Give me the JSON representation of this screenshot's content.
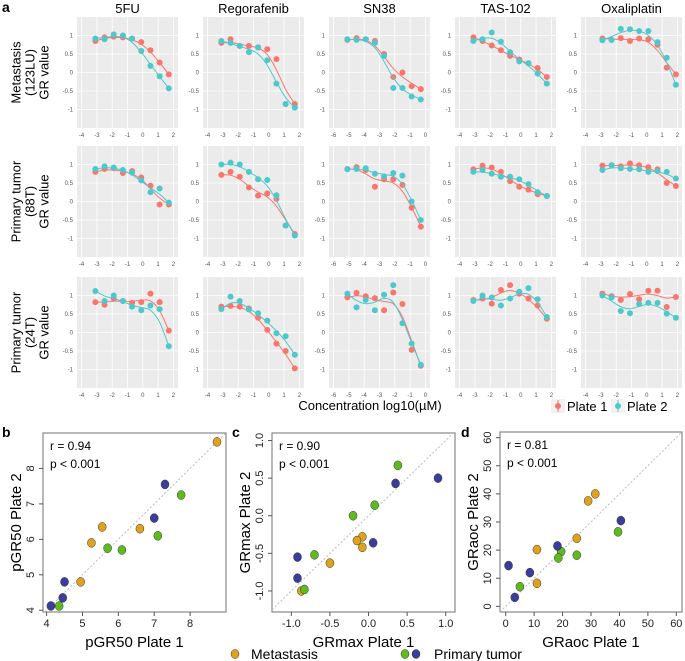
{
  "panel_labels": {
    "a": "a",
    "b": "b",
    "c": "c",
    "d": "d"
  },
  "colors": {
    "plate1": "#F8766D",
    "plate2": "#4DC9CC",
    "metastasis": "#DFA21C",
    "primary_green": "#5DBB1E",
    "primary_blue": "#3A3D9C",
    "panel_bg": "#EBEBEB"
  },
  "chart_data": [
    {
      "type": "line",
      "panel": "a",
      "columns": [
        "5FU",
        "Regorafenib",
        "SN38",
        "TAS-102",
        "Oxaliplatin"
      ],
      "rows": [
        {
          "label": [
            "Metastasis",
            "(123LU)",
            "GR value"
          ]
        },
        {
          "label": [
            "Primary tumor",
            "(88T)",
            "GR value"
          ]
        },
        {
          "label": [
            "Primary tumor",
            "(24T)",
            "GR value"
          ]
        }
      ],
      "xlabel": "Concentration log10(µM)",
      "ylim": [
        -1.5,
        1.5
      ],
      "yticks": [
        "-1",
        "-0.5",
        "0",
        "0.5",
        "1"
      ],
      "xticks_by_column": [
        [
          "-4",
          "-3",
          "-2",
          "-1",
          "0",
          "1",
          "2"
        ],
        [
          "-4",
          "-3",
          "-2",
          "-1",
          "0",
          "1",
          "2"
        ],
        [
          "-6",
          "-5",
          "-4",
          "-3",
          "-2",
          "-1",
          "0"
        ],
        [
          "-4",
          "-3",
          "-2",
          "-1",
          "0",
          "1",
          "2"
        ],
        [
          "-4",
          "-3",
          "-2",
          "-1",
          "0",
          "1",
          "2"
        ]
      ],
      "xlim_by_column": [
        [
          -4.3,
          2.3
        ],
        [
          -4.3,
          2.3
        ],
        [
          -6.3,
          0.3
        ],
        [
          -4.3,
          2.3
        ],
        [
          -4.3,
          2.3
        ]
      ],
      "x_by_column": [
        [
          -3.1,
          -2.5,
          -1.9,
          -1.3,
          -0.7,
          -0.1,
          0.5,
          1.1,
          1.7
        ],
        [
          -3.1,
          -2.5,
          -1.9,
          -1.3,
          -0.7,
          -0.1,
          0.5,
          1.1,
          1.7
        ],
        [
          -5.1,
          -4.5,
          -3.9,
          -3.3,
          -2.7,
          -2.1,
          -1.5,
          -0.9,
          -0.3
        ],
        [
          -3.1,
          -2.5,
          -1.9,
          -1.3,
          -0.7,
          -0.1,
          0.5,
          1.1,
          1.7
        ],
        [
          -2.9,
          -2.3,
          -1.7,
          -1.1,
          -0.5,
          0.1,
          0.7,
          1.3,
          1.9
        ]
      ],
      "legend": [
        "Plate 1",
        "Plate 2"
      ],
      "legend_position": "bottom-right",
      "series": [
        [
          {
            "p1": [
              0.85,
              0.95,
              0.97,
              0.95,
              0.92,
              0.82,
              0.6,
              0.27,
              -0.05
            ],
            "p2": [
              0.92,
              0.9,
              1.03,
              1.0,
              0.92,
              0.58,
              0.18,
              -0.1,
              -0.43
            ]
          },
          {
            "p1": [
              0.8,
              0.9,
              0.72,
              0.72,
              0.68,
              0.63,
              0.36,
              -0.85,
              -0.85
            ],
            "p2": [
              0.85,
              0.8,
              0.72,
              0.55,
              0.68,
              0.33,
              -0.3,
              -0.85,
              -0.95
            ]
          },
          {
            "p1": [
              0.88,
              0.93,
              0.9,
              0.85,
              0.5,
              -0.12,
              0.0,
              -0.37,
              -0.45
            ],
            "p2": [
              0.9,
              0.88,
              0.9,
              0.8,
              0.45,
              -0.42,
              -0.42,
              -0.65,
              -0.73
            ]
          },
          {
            "p1": [
              0.95,
              0.85,
              0.73,
              0.6,
              0.45,
              0.35,
              0.25,
              0.12,
              -0.12
            ],
            "p2": [
              0.85,
              0.9,
              1.08,
              0.83,
              0.55,
              0.3,
              0.25,
              -0.03,
              -0.3
            ]
          },
          {
            "p1": [
              0.92,
              0.88,
              0.93,
              0.85,
              0.92,
              0.9,
              0.75,
              0.13,
              -0.05
            ],
            "p2": [
              0.87,
              0.88,
              1.18,
              1.17,
              1.12,
              1.12,
              0.82,
              0.4,
              -0.33
            ]
          }
        ],
        [
          {
            "p1": [
              0.8,
              0.88,
              0.9,
              0.77,
              0.82,
              0.65,
              0.43,
              -0.08,
              -0.08
            ],
            "p2": [
              0.88,
              0.95,
              0.92,
              0.85,
              0.78,
              0.57,
              0.25,
              0.35,
              -0.03
            ]
          },
          {
            "p1": [
              0.72,
              0.8,
              0.67,
              0.38,
              0.16,
              0.22,
              0.07,
              -0.65,
              -0.88
            ],
            "p2": [
              1.0,
              1.05,
              1.0,
              0.8,
              0.6,
              0.58,
              0.17,
              -0.65,
              -0.92
            ]
          },
          {
            "p1": [
              0.88,
              0.93,
              0.85,
              0.4,
              0.6,
              0.6,
              0.45,
              -0.17,
              -0.68
            ],
            "p2": [
              0.87,
              0.88,
              0.9,
              0.75,
              0.68,
              0.77,
              0.7,
              0.0,
              -0.5
            ]
          },
          {
            "p1": [
              0.87,
              0.97,
              0.92,
              0.8,
              0.55,
              0.4,
              0.32,
              0.2,
              0.15
            ],
            "p2": [
              0.8,
              0.85,
              0.75,
              0.67,
              0.67,
              0.6,
              0.47,
              0.25,
              0.15
            ]
          },
          {
            "p1": [
              0.97,
              0.98,
              0.95,
              1.03,
              0.98,
              0.93,
              0.87,
              0.5,
              0.42
            ],
            "p2": [
              0.85,
              0.98,
              0.9,
              0.88,
              0.87,
              0.8,
              0.82,
              0.8,
              0.62
            ]
          }
        ],
        [
          {
            "p1": [
              0.82,
              0.75,
              0.92,
              0.85,
              0.8,
              0.82,
              1.05,
              0.82,
              0.05
            ],
            "p2": [
              1.12,
              0.85,
              1.0,
              0.85,
              0.7,
              0.6,
              0.73,
              0.63,
              -0.37
            ]
          },
          {
            "p1": [
              0.7,
              0.72,
              0.7,
              0.65,
              0.4,
              0.07,
              -0.3,
              -0.5,
              -0.97
            ],
            "p2": [
              0.63,
              0.97,
              0.85,
              0.62,
              0.52,
              0.32,
              -0.02,
              -0.1,
              -0.6
            ]
          },
          {
            "p1": [
              0.95,
              1.07,
              0.98,
              0.93,
              0.6,
              1.08,
              0.77,
              -0.47,
              -0.9
            ],
            "p2": [
              1.05,
              0.68,
              0.88,
              0.6,
              1.02,
              1.28,
              0.25,
              -0.3,
              -0.87
            ]
          },
          {
            "p1": [
              0.88,
              0.92,
              0.78,
              1.15,
              1.28,
              1.05,
              0.92,
              0.73,
              0.37
            ],
            "p2": [
              0.85,
              1.0,
              0.95,
              0.73,
              0.92,
              1.1,
              1.2,
              0.9,
              0.42
            ]
          },
          {
            "p1": [
              1.05,
              0.98,
              0.88,
              1.04,
              0.9,
              1.13,
              1.13,
              0.69,
              0.96
            ],
            "p2": [
              1.0,
              0.95,
              0.58,
              0.52,
              0.77,
              0.8,
              0.8,
              0.51,
              0.4
            ]
          }
        ]
      ]
    },
    {
      "type": "scatter",
      "panel": "b",
      "xlabel": "pGR50 Plate 1",
      "ylabel": "pGR50 Plate 2",
      "xlim": [
        3.9,
        9.0
      ],
      "ylim": [
        3.95,
        9.0
      ],
      "xticks": [
        4,
        5,
        6,
        7,
        8
      ],
      "yticks": [
        4,
        5,
        6,
        7,
        8
      ],
      "annotation": [
        "r = 0.94",
        "p < 0.001"
      ],
      "metastasis": [
        [
          8.75,
          8.75
        ],
        [
          6.6,
          6.3
        ],
        [
          5.55,
          6.35
        ],
        [
          5.25,
          5.9
        ],
        [
          4.95,
          4.8
        ]
      ],
      "primary_green": [
        [
          7.75,
          7.25
        ],
        [
          7.1,
          6.1
        ],
        [
          6.1,
          5.7
        ],
        [
          5.7,
          5.75
        ],
        [
          4.35,
          4.12
        ]
      ],
      "primary_blue": [
        [
          7.3,
          7.55
        ],
        [
          7.0,
          6.6
        ],
        [
          4.5,
          4.8
        ],
        [
          4.45,
          4.35
        ],
        [
          4.12,
          4.12
        ]
      ]
    },
    {
      "type": "scatter",
      "panel": "c",
      "xlabel": "GRmax Plate 1",
      "ylabel": "GRmax Plate 2",
      "xlim": [
        -1.25,
        1.12
      ],
      "ylim": [
        -1.28,
        1.1
      ],
      "xticks": [
        "-1.0",
        "-0.5",
        "0.0",
        "0.5",
        "1.0"
      ],
      "yticks": [
        "-1.0",
        "-0.5",
        "0.0",
        "0.5",
        "1.0"
      ],
      "annotation": [
        "r = 0.90",
        "p < 0.001"
      ],
      "metastasis": [
        [
          -0.08,
          -0.28
        ],
        [
          -0.15,
          -0.33
        ],
        [
          -0.08,
          -0.42
        ],
        [
          -0.5,
          -0.63
        ],
        [
          -0.87,
          -1.0
        ]
      ],
      "primary_green": [
        [
          0.38,
          0.67
        ],
        [
          0.08,
          0.14
        ],
        [
          -0.2,
          0.0
        ],
        [
          -0.7,
          -0.52
        ],
        [
          -0.83,
          -0.98
        ]
      ],
      "primary_blue": [
        [
          0.9,
          0.5
        ],
        [
          0.35,
          0.43
        ],
        [
          0.06,
          -0.36
        ],
        [
          -0.92,
          -0.55
        ],
        [
          -0.92,
          -0.83
        ]
      ]
    },
    {
      "type": "scatter",
      "panel": "d",
      "xlabel": "GRaoc Plate 1",
      "ylabel": "GRaoc Plate 2",
      "xlim": [
        -2,
        62
      ],
      "ylim": [
        -2,
        62
      ],
      "xticks": [
        0,
        10,
        20,
        30,
        40,
        50,
        60
      ],
      "yticks": [
        0,
        10,
        20,
        30,
        40,
        50,
        60
      ],
      "annotation": [
        "r = 0.81",
        "p < 0.001"
      ],
      "metastasis": [
        [
          31.5,
          40
        ],
        [
          29,
          37.5
        ],
        [
          25,
          24.2
        ],
        [
          11,
          20.2
        ],
        [
          11,
          8.2
        ]
      ],
      "primary_green": [
        [
          39.5,
          26.5
        ],
        [
          25,
          18.2
        ],
        [
          19.5,
          19.5
        ],
        [
          18.5,
          17.2
        ],
        [
          5,
          7
        ]
      ],
      "primary_blue": [
        [
          40.5,
          30.5
        ],
        [
          18.2,
          21.5
        ],
        [
          8.5,
          12
        ],
        [
          1,
          14.5
        ],
        [
          3.2,
          3.2
        ]
      ]
    }
  ],
  "bottom_legend": {
    "metastasis": "Metastasis",
    "primary": "Primary tumor"
  }
}
